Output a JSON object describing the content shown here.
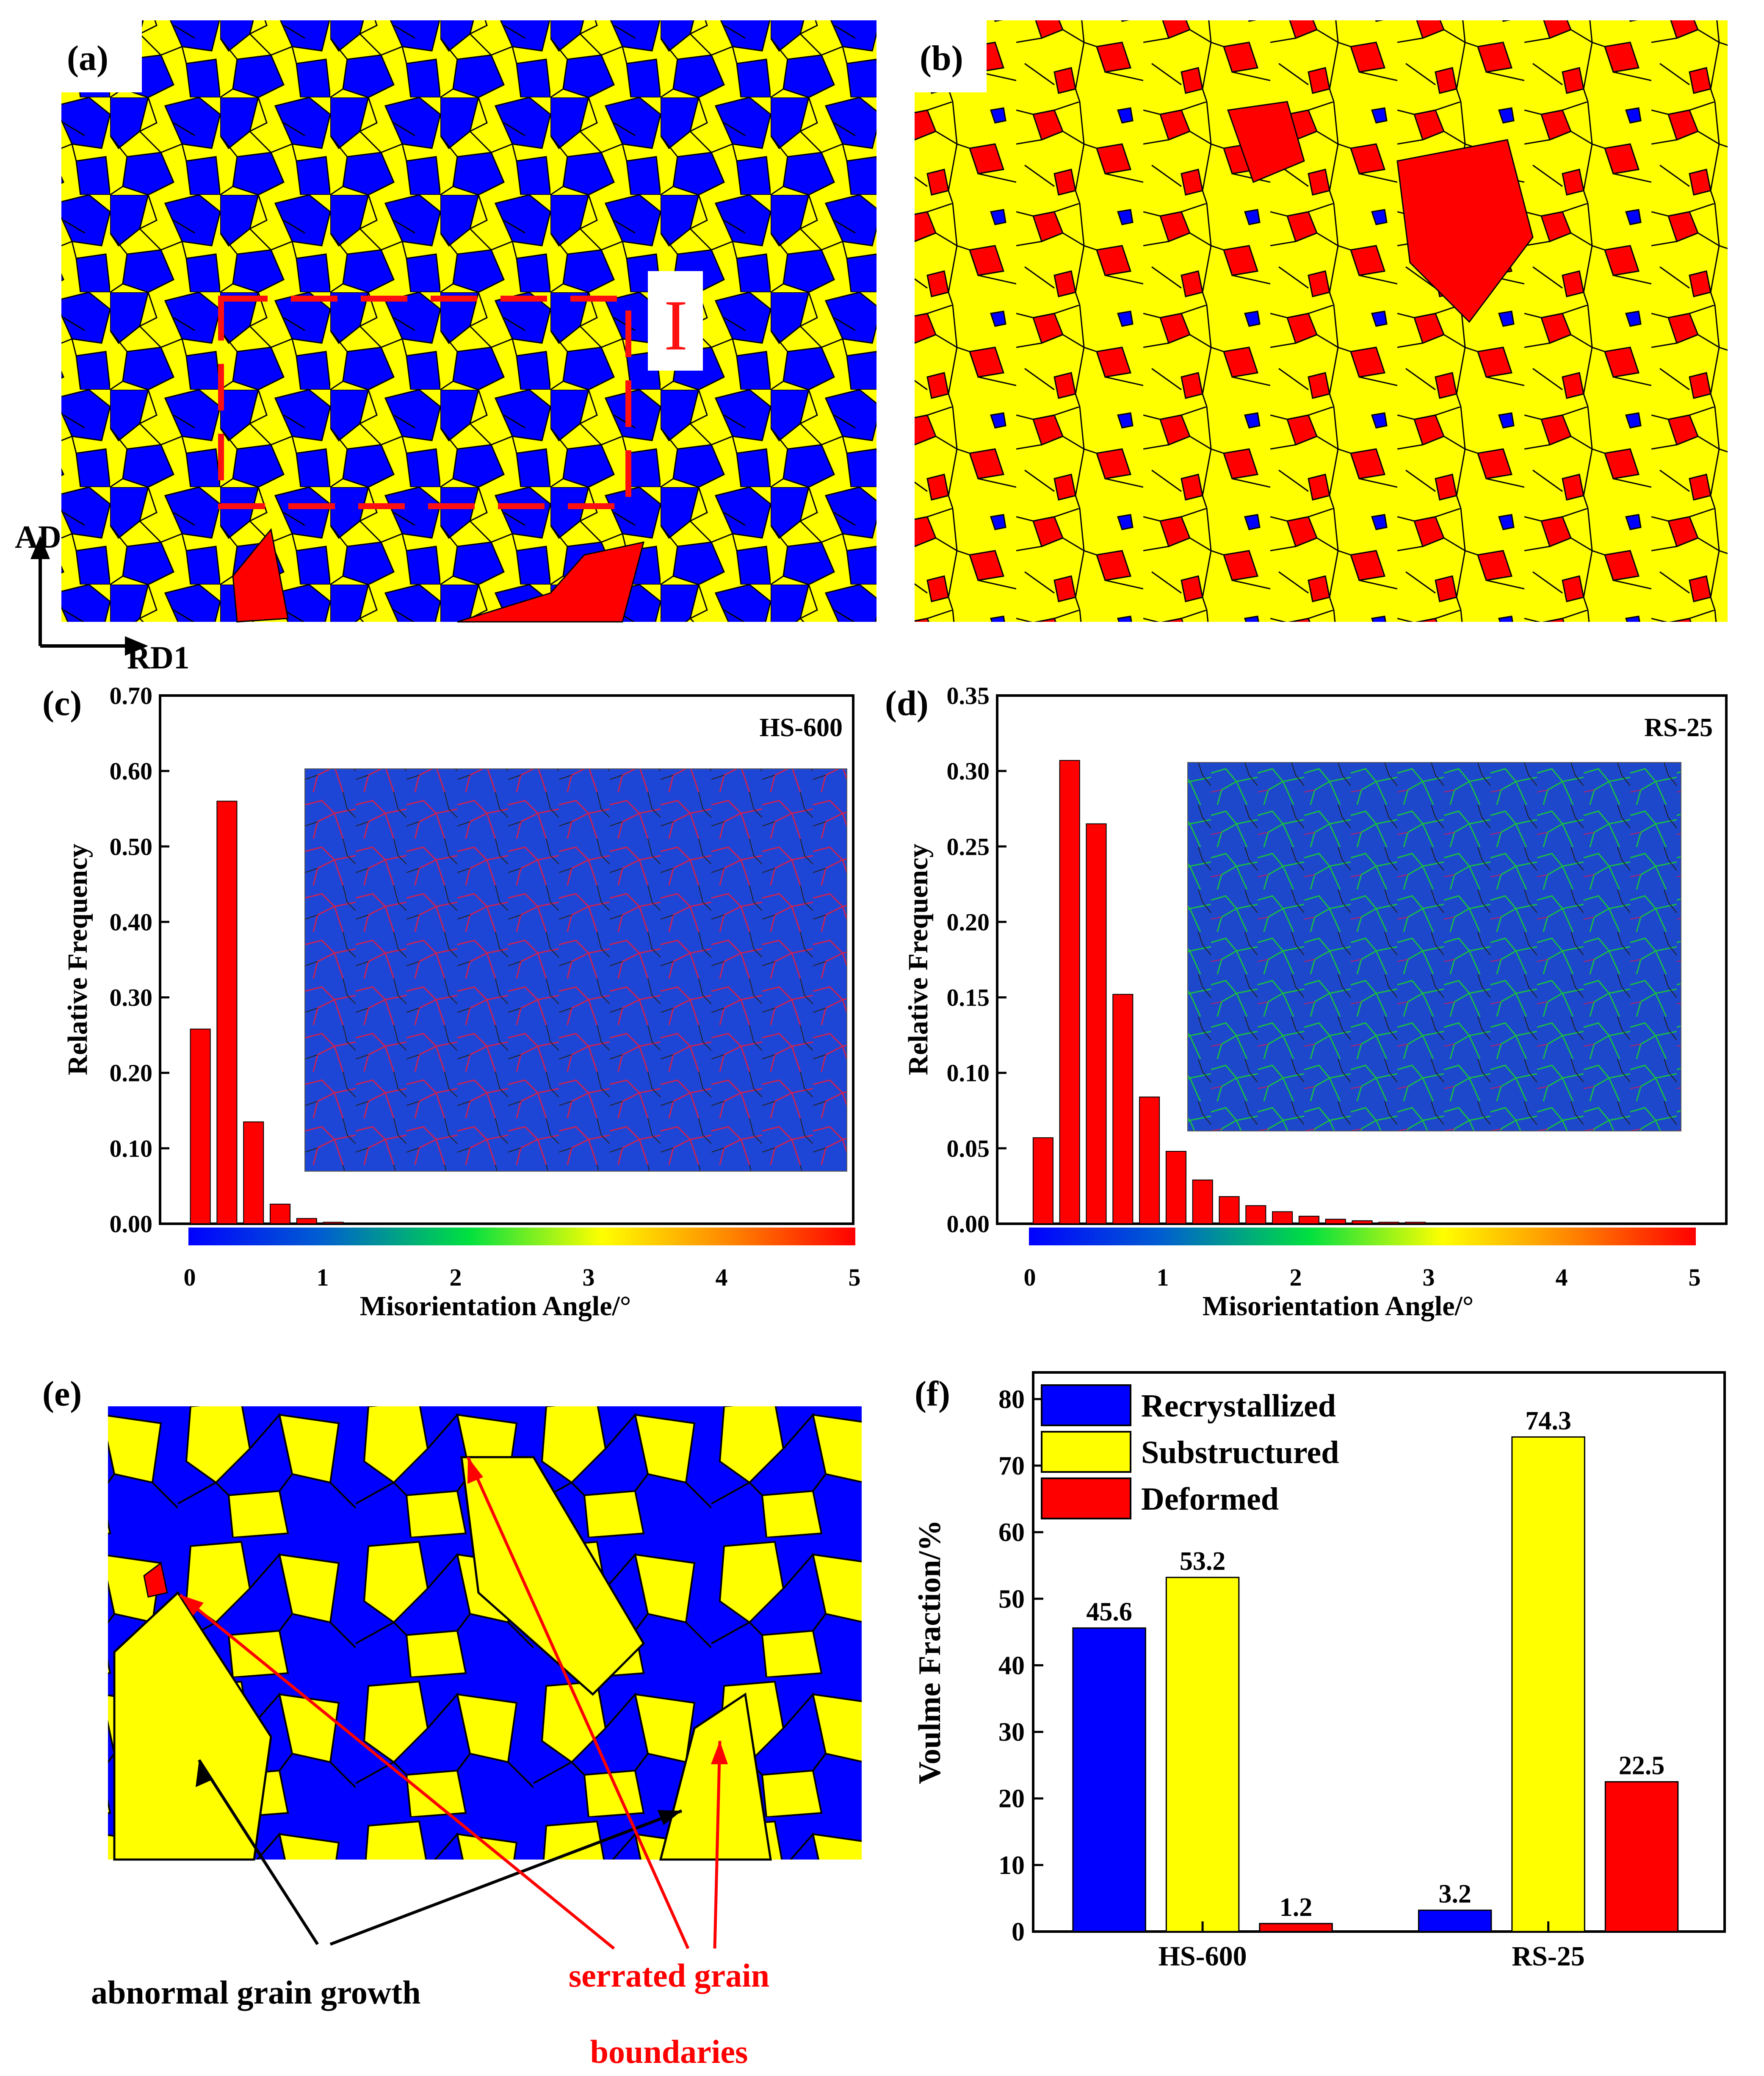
{
  "panels": {
    "a": {
      "label": "(a)",
      "region_label": "I",
      "axis_labels": {
        "vertical": "AD",
        "horizontal": "RD1"
      }
    },
    "b": {
      "label": "(b)"
    },
    "c": {
      "label": "(c)",
      "sample": "HS-600"
    },
    "d": {
      "label": "(d)",
      "sample": "RS-25"
    },
    "e": {
      "label": "(e)",
      "annotations": {
        "black": "abnormal grain growth",
        "red_line1": "serrated grain",
        "red_line2": "boundaries"
      }
    },
    "f": {
      "label": "(f)"
    }
  },
  "colors": {
    "recrystallized": "#0000ff",
    "substructured": "#ffff00",
    "deformed": "#ff0000",
    "grain_boundary": "#000000",
    "annotation_red": "#ff0000"
  },
  "chart_data": [
    {
      "id": "c",
      "type": "bar",
      "title": "HS-600",
      "xlabel": "Misorientation Angle/°",
      "ylabel": "Relative Frequency",
      "xlim": [
        0,
        5
      ],
      "ylim": [
        0,
        0.7
      ],
      "x_ticks": [
        "0",
        "1",
        "2",
        "3",
        "4",
        "5"
      ],
      "y_ticks": [
        "0.00",
        "0.10",
        "0.20",
        "0.30",
        "0.40",
        "0.50",
        "0.60",
        "0.70"
      ],
      "x": [
        0.08,
        0.28,
        0.48,
        0.68,
        0.88,
        1.08,
        1.28
      ],
      "values": [
        0.258,
        0.56,
        0.135,
        0.026,
        0.007,
        0.002,
        0.001
      ],
      "colorbar": true,
      "inset": "misorientation map"
    },
    {
      "id": "d",
      "type": "bar",
      "title": "RS-25",
      "xlabel": "Misorientation Angle/°",
      "ylabel": "Relative Frequency",
      "xlim": [
        0,
        5
      ],
      "ylim": [
        0,
        0.35
      ],
      "x_ticks": [
        "0",
        "1",
        "2",
        "3",
        "4",
        "5"
      ],
      "y_ticks": [
        "0.00",
        "0.05",
        "0.10",
        "0.15",
        "0.20",
        "0.25",
        "0.30",
        "0.35"
      ],
      "x": [
        0.1,
        0.3,
        0.5,
        0.7,
        0.9,
        1.1,
        1.3,
        1.5,
        1.7,
        1.9,
        2.1,
        2.3,
        2.5,
        2.7,
        2.9
      ],
      "values": [
        0.057,
        0.307,
        0.265,
        0.152,
        0.084,
        0.048,
        0.029,
        0.018,
        0.012,
        0.008,
        0.005,
        0.003,
        0.002,
        0.001,
        0.001
      ],
      "colorbar": true,
      "inset": "misorientation map"
    },
    {
      "id": "f",
      "type": "bar",
      "xlabel": "",
      "ylabel": "Voulme Fraction/%",
      "ylim": [
        0,
        84
      ],
      "y_ticks": [
        "0",
        "10",
        "20",
        "30",
        "40",
        "50",
        "60",
        "70",
        "80"
      ],
      "categories": [
        "HS-600",
        "RS-25"
      ],
      "series": [
        {
          "name": "Recrystallized",
          "values": [
            45.6,
            3.2
          ],
          "labels": [
            "45.6",
            "3.2"
          ]
        },
        {
          "name": "Substructured",
          "values": [
            53.2,
            74.3
          ],
          "labels": [
            "53.2",
            "74.3"
          ]
        },
        {
          "name": "Deformed",
          "values": [
            1.2,
            22.5
          ],
          "labels": [
            "1.2",
            "22.5"
          ]
        }
      ],
      "legend": "top-left"
    }
  ]
}
